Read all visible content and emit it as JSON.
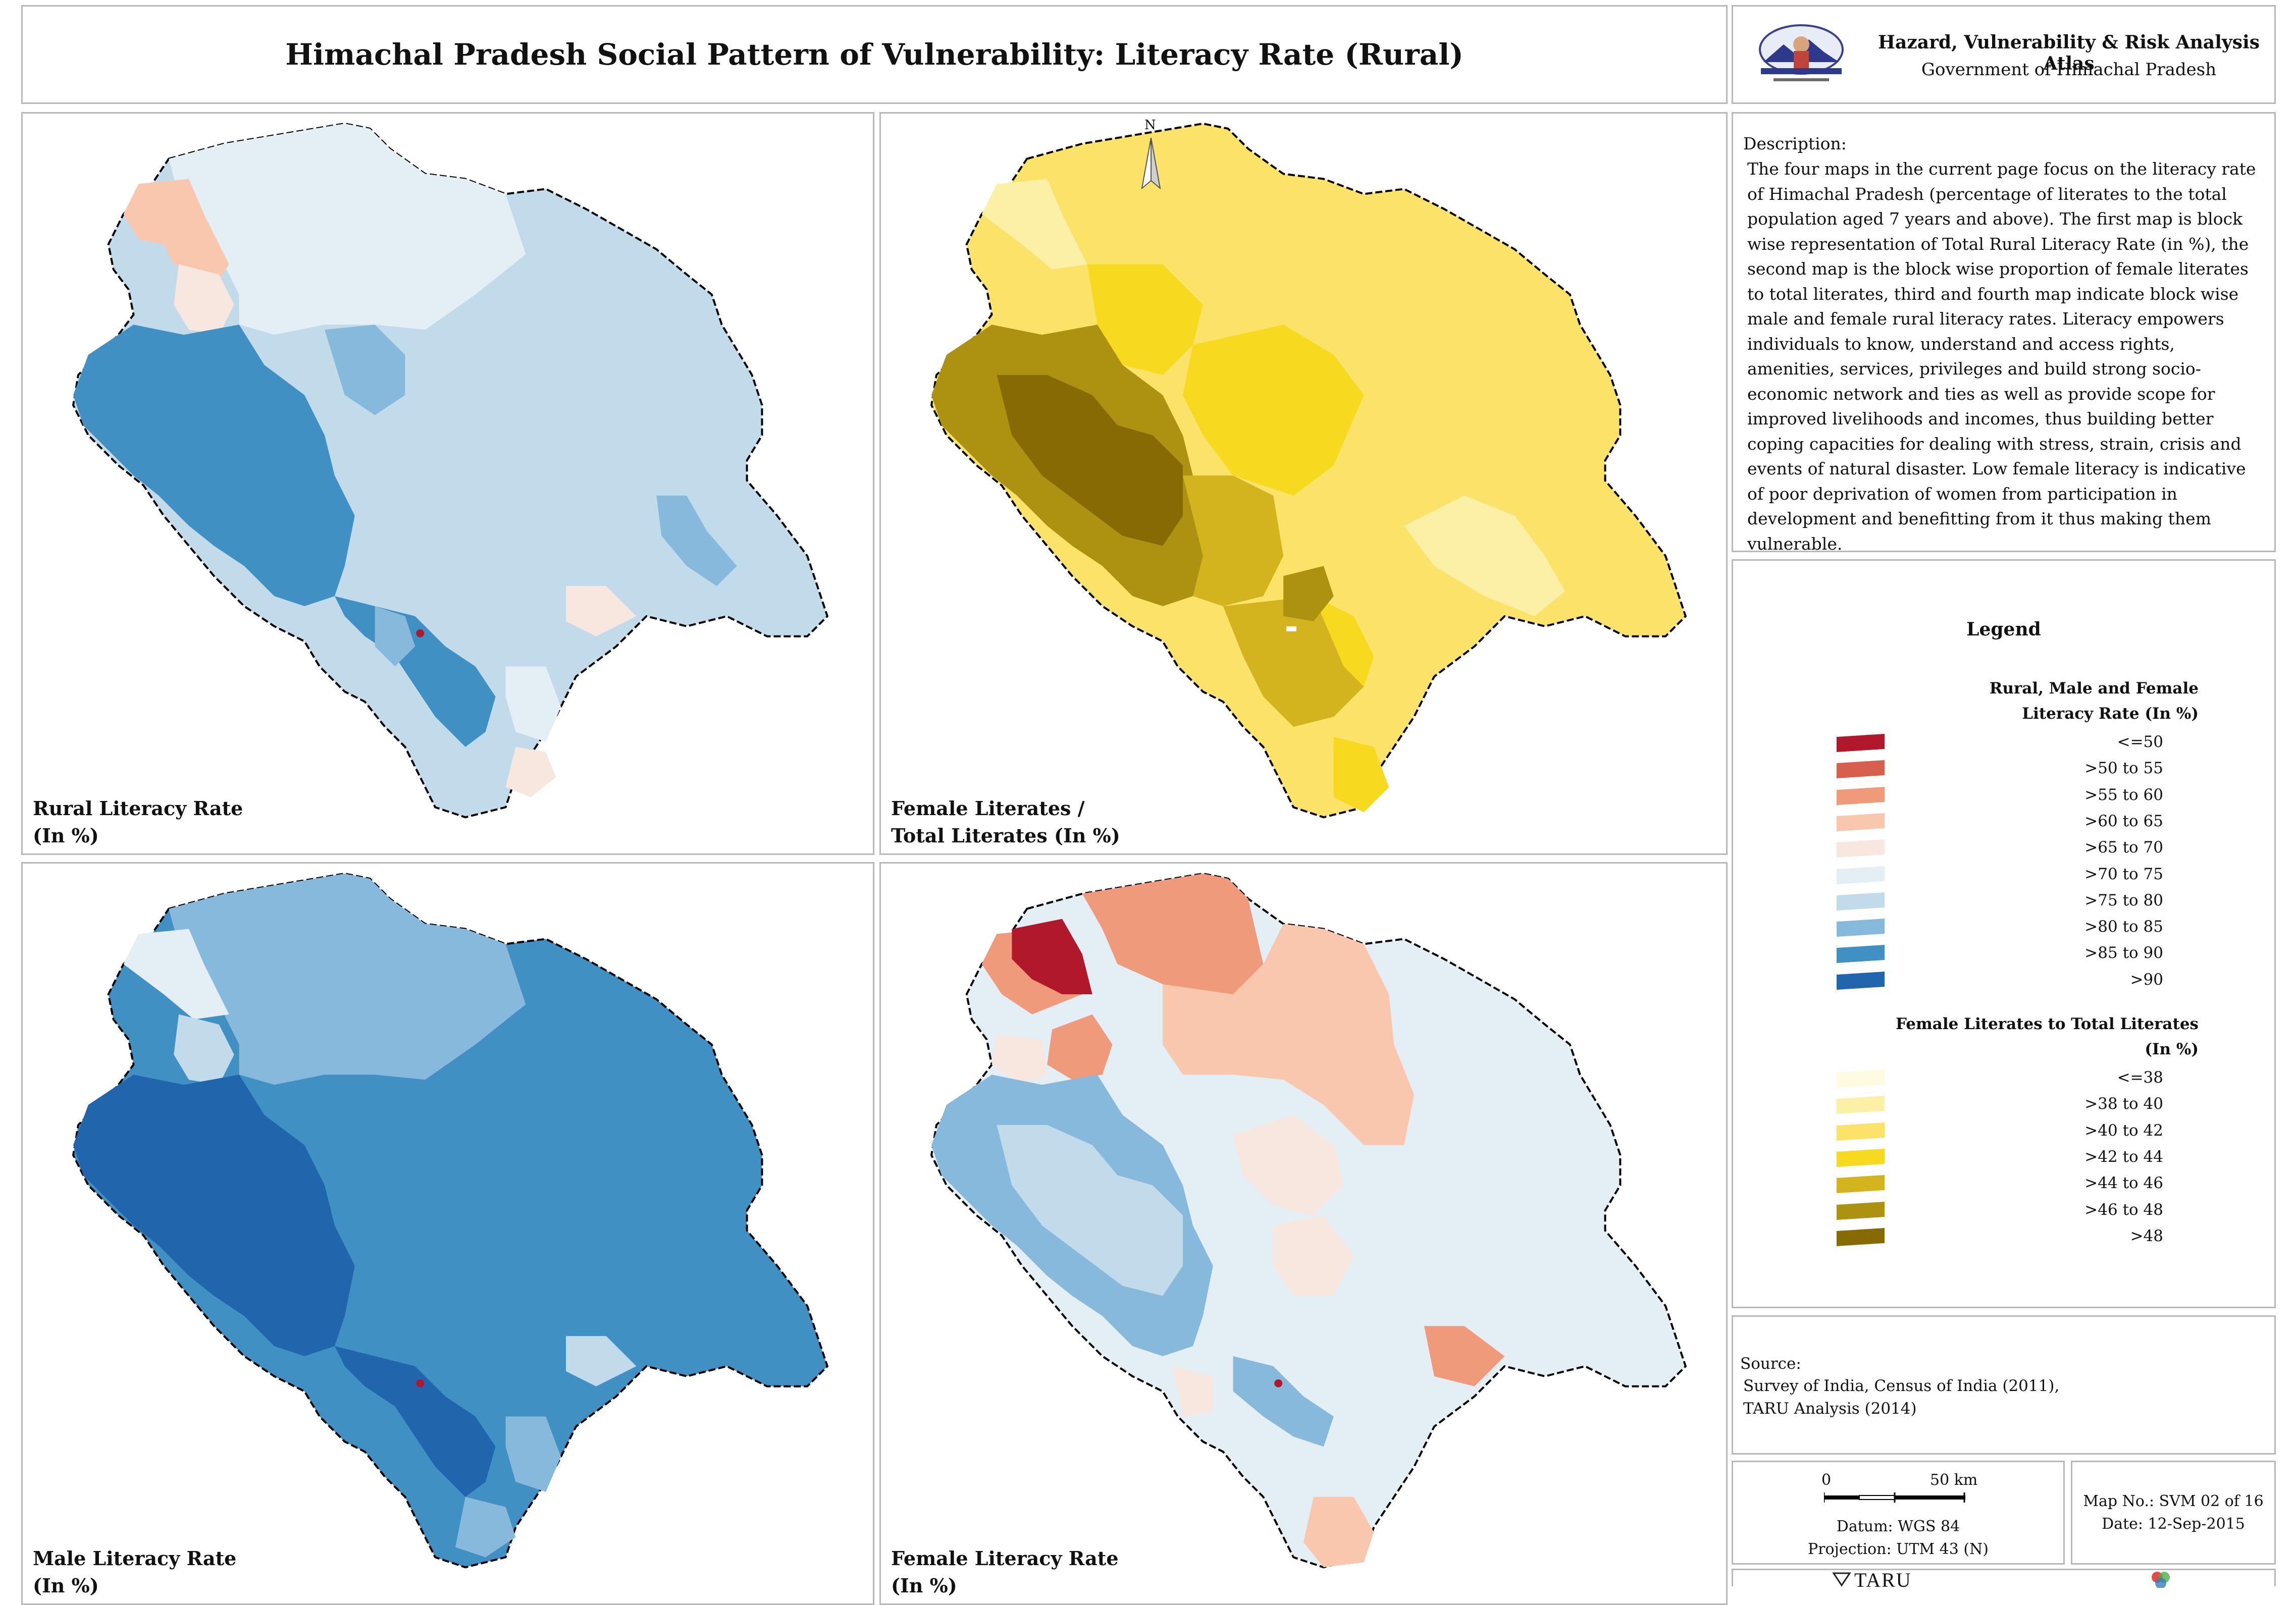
{
  "title": "Himachal Pradesh Social Pattern of Vulnerability: Literacy Rate (Rural)",
  "org": {
    "line1": "Hazard, Vulnerability & Risk Analysis Atlas",
    "line2": "Government of Himachal Pradesh"
  },
  "description": {
    "heading": "Description:",
    "text": "The four maps in the current page focus on the literacy rate of Himachal Pradesh (percentage of literates to the total population aged 7 years and above). The first map is block wise representation of Total Rural Literacy Rate (in %), the second map is the block wise proportion of female literates to total literates, third and fourth map indicate block wise male and female rural literacy rates. Literacy empowers individuals to know, understand and access rights, amenities, services, privileges and build strong socio-economic network and ties as well as provide scope for improved livelihoods and incomes, thus building better coping capacities for dealing with stress, strain, crisis and events of natural disaster. Low female literacy is indicative of poor deprivation of women from participation in development and benefitting from it thus making them vulnerable."
  },
  "maps": {
    "rural": {
      "label_line1": "Rural Literacy Rate",
      "label_line2": "(In %)"
    },
    "female_share": {
      "label_line1": "Female Literates /",
      "label_line2": "Total Literates (In %)"
    },
    "male": {
      "label_line1": "Male Literacy Rate",
      "label_line2": "(In %)"
    },
    "female": {
      "label_line1": "Female Literacy Rate",
      "label_line2": "(In %)"
    },
    "north_label": "N"
  },
  "legend": {
    "title": "Legend",
    "literacy": {
      "heading_line1": "Rural, Male and Female",
      "heading_line2": "Literacy Rate (In %)",
      "classes": [
        {
          "label": "<=50",
          "color": "#b2182b"
        },
        {
          "label": ">50 to 55",
          "color": "#d6604d"
        },
        {
          "label": ">55 to 60",
          "color": "#f09a7c"
        },
        {
          "label": ">60 to 65",
          "color": "#f8c7ad"
        },
        {
          "label": ">65 to 70",
          "color": "#f8e7df"
        },
        {
          "label": ">70 to 75",
          "color": "#e4eef5"
        },
        {
          "label": ">75 to 80",
          "color": "#c2dbeb"
        },
        {
          "label": ">80 to 85",
          "color": "#86b9db"
        },
        {
          "label": ">85 to 90",
          "color": "#4190c3"
        },
        {
          "label": ">90",
          "color": "#2166ac"
        }
      ]
    },
    "female_share": {
      "heading_line1": "Female Literates to Total Literates",
      "heading_line2": "(In %)",
      "classes": [
        {
          "label": "<=38",
          "color": "#fffbe0"
        },
        {
          "label": ">38 to 40",
          "color": "#fcefa6"
        },
        {
          "label": ">40 to 42",
          "color": "#fbe369"
        },
        {
          "label": ">42 to 44",
          "color": "#f7d91f"
        },
        {
          "label": ">44 to 46",
          "color": "#d4b41e"
        },
        {
          "label": ">46 to 48",
          "color": "#ad9211"
        },
        {
          "label": ">48",
          "color": "#866a04"
        }
      ]
    }
  },
  "source": {
    "heading": "Source:",
    "line1": "Survey of India, Census of India (2011),",
    "line2": "TARU Analysis (2014)"
  },
  "scale": {
    "start": "0",
    "end": "50 km",
    "datum": "Datum: WGS 84",
    "projection": "Projection: UTM 43 (N)"
  },
  "mapinfo": {
    "map_no": "Map No.: SVM 02 of 16",
    "date": "Date: 12-Sep-2015"
  },
  "footer": {
    "brand": "TARU"
  }
}
